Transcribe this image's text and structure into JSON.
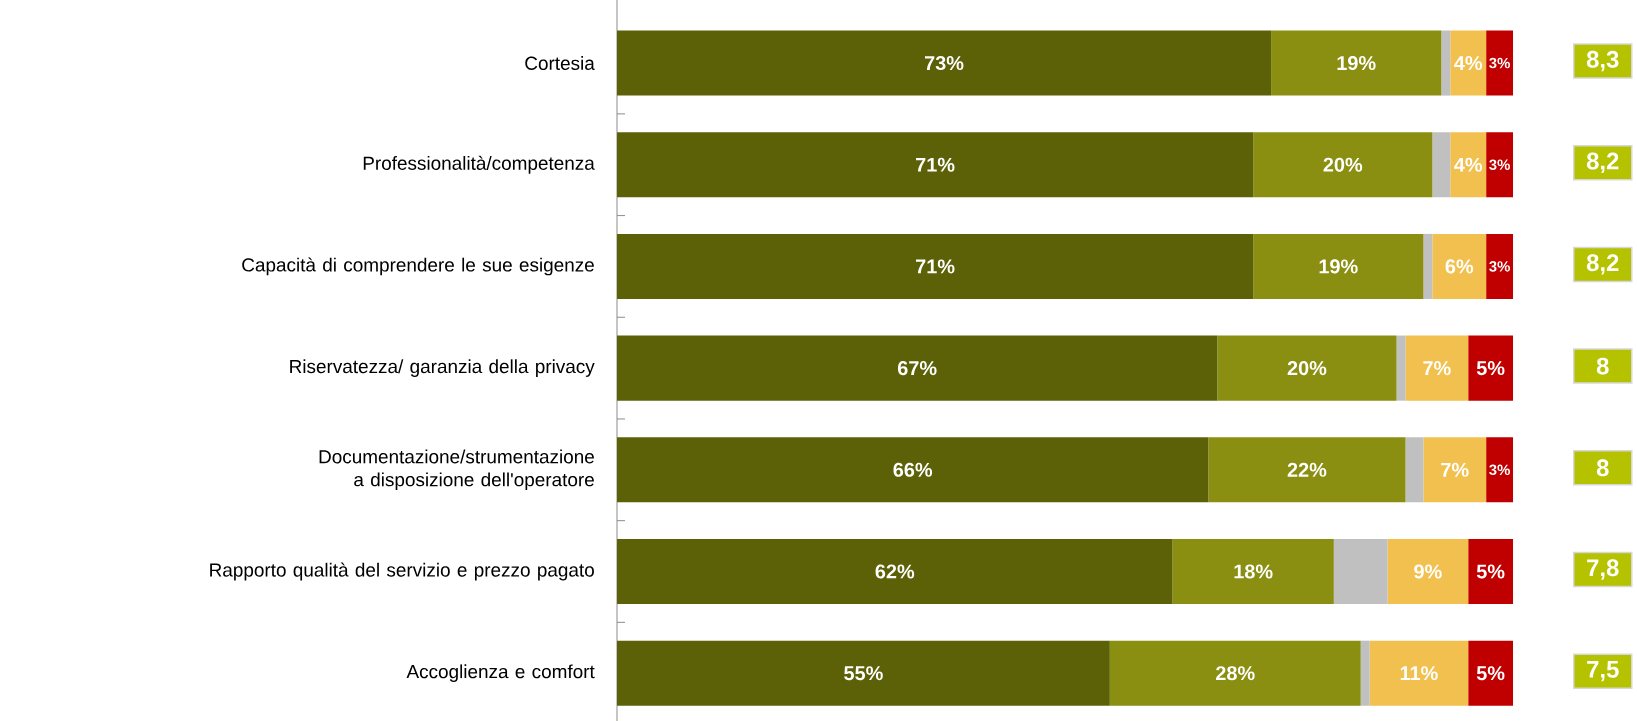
{
  "chart_data": {
    "type": "bar",
    "orientation": "horizontal",
    "stacked": true,
    "tick_labels": "y",
    "categories": [
      "Cortesia",
      "Professionalità/competenza",
      "Capacità di comprendere le sue esigenze",
      "Riservatezza/ garanzia della privacy",
      "Documentazione/strumentazione a disposizione dell'operatore",
      "Rapporto qualità del servizio e prezzo pagato",
      "Accoglienza e comfort"
    ],
    "series": [
      {
        "color": "#5c6108",
        "values": [
          73,
          71,
          71,
          67,
          66,
          62,
          55
        ],
        "value_labels": [
          "73%",
          "71%",
          "71%",
          "67%",
          "66%",
          "62%",
          "55%"
        ]
      },
      {
        "color": "#8a8f12",
        "values": [
          19,
          20,
          19,
          20,
          22,
          18,
          28
        ],
        "value_labels": [
          "19%",
          "20%",
          "19%",
          "20%",
          "22%",
          "18%",
          "28%"
        ]
      },
      {
        "color": "#c0c0c0",
        "values": [
          1,
          2,
          1,
          1,
          2,
          6,
          1
        ]
      },
      {
        "color": "#f2c04e",
        "values": [
          4,
          4,
          6,
          7,
          7,
          9,
          11
        ],
        "value_labels": [
          "4%",
          "4%",
          "6%",
          "7%",
          "7%",
          "9%",
          "11%"
        ]
      },
      {
        "color": "#c00000",
        "values": [
          3,
          3,
          3,
          5,
          3,
          5,
          5
        ],
        "value_labels": [
          "3%",
          "3%",
          "3%",
          "5%",
          "3%",
          "5%",
          "5%"
        ]
      }
    ],
    "annotations": [
      "8,3",
      "8,2",
      "8,2",
      "8",
      "8",
      "7,8",
      "7,5"
    ]
  }
}
